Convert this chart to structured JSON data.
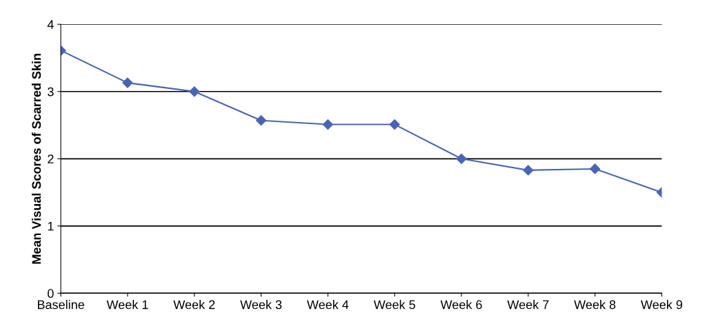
{
  "chart_data": {
    "type": "line",
    "ylabel": "Mean Visual Scores of Scarred Skin",
    "categories": [
      "Baseline",
      "Week 1",
      "Week 2",
      "Week 3",
      "Week 4",
      "Week 5",
      "Week 6",
      "Week 7",
      "Week 8",
      "Week 9"
    ],
    "series": [
      {
        "color": "#4a64b4",
        "values": [
          3.61,
          3.13,
          3.0,
          2.57,
          2.51,
          2.51,
          2.0,
          1.83,
          1.85,
          1.5
        ]
      }
    ],
    "ylim": [
      0,
      4
    ],
    "yticks": [
      0,
      1,
      2,
      3,
      4
    ],
    "grid": "y",
    "marker": "diamond",
    "line_style": "solid"
  }
}
